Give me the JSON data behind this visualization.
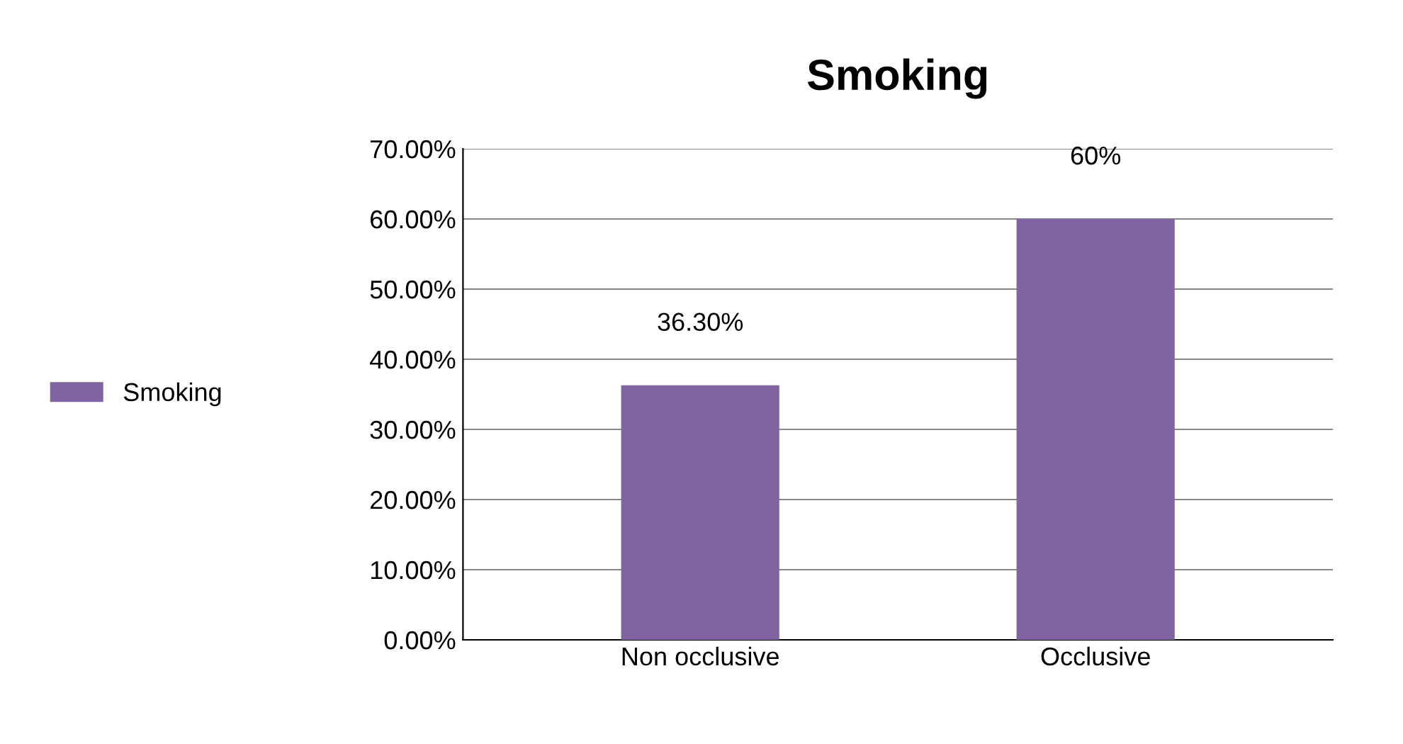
{
  "chart_data": {
    "type": "bar",
    "title": "Smoking",
    "categories": [
      "Non occlusive",
      "Occlusive"
    ],
    "series": [
      {
        "name": "Smoking",
        "color": "#8064a2",
        "values": [
          36.3,
          60
        ],
        "value_labels": [
          "36.30%",
          "60%"
        ]
      }
    ],
    "ylim": [
      0,
      70
    ],
    "yticks": [
      {
        "value": 0,
        "label": "0.00%"
      },
      {
        "value": 10,
        "label": "10.00%"
      },
      {
        "value": 20,
        "label": "20.00%"
      },
      {
        "value": 30,
        "label": "30.00%"
      },
      {
        "value": 40,
        "label": "40.00%"
      },
      {
        "value": 50,
        "label": "50.00%"
      },
      {
        "value": 60,
        "label": "60.00%"
      },
      {
        "value": 70,
        "label": "70.00%"
      }
    ],
    "grid": "y",
    "legend": "left"
  }
}
